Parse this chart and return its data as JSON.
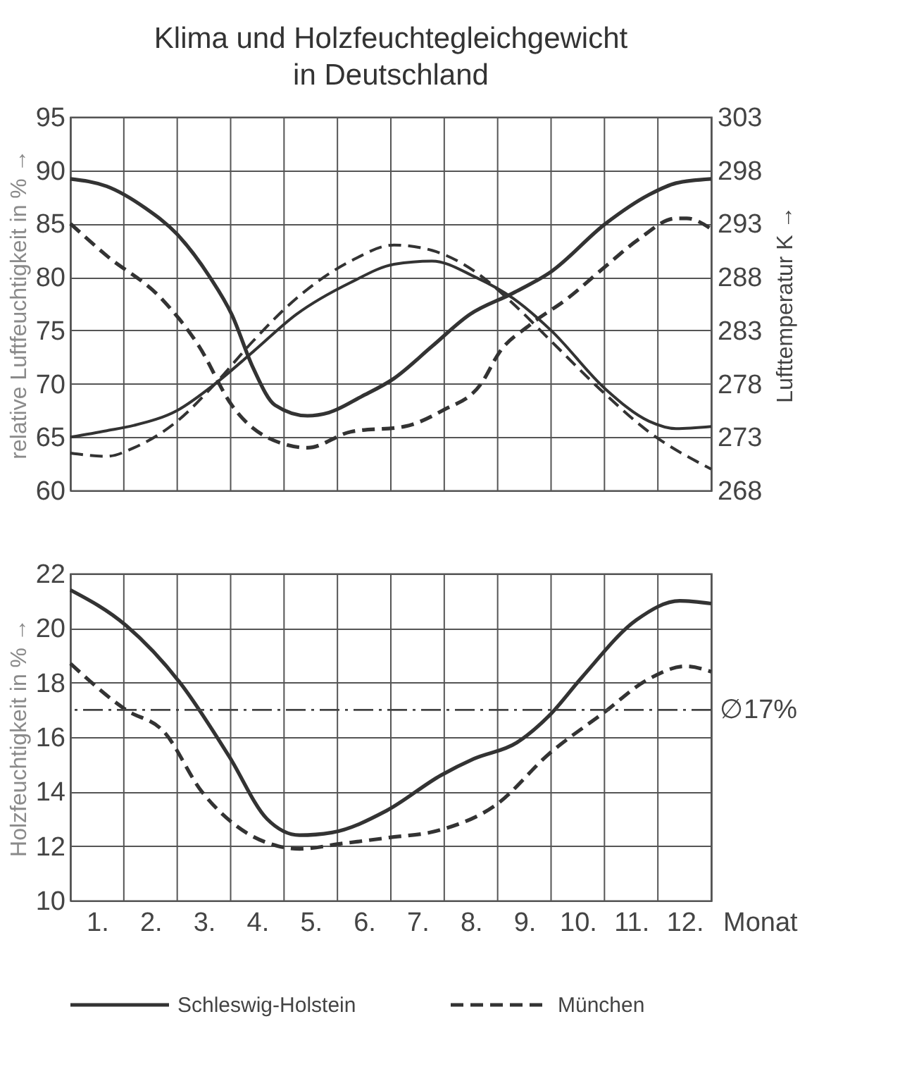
{
  "chart_data": [
    {
      "type": "line",
      "title": "Klima und Holzfeuchtegleichgewicht\nin Deutschland",
      "ylabel": "relative Luftfeuchtigkeit in % →",
      "y2label": "Lufttemperatur K →",
      "xlim": [
        0.5,
        12.5
      ],
      "xticks": [
        {
          "value": 0.5,
          "label": null
        },
        {
          "value": 1.5,
          "label": null
        },
        {
          "value": 2.5,
          "label": null
        },
        {
          "value": 3.5,
          "label": null
        },
        {
          "value": 4.5,
          "label": null
        },
        {
          "value": 5.5,
          "label": null
        },
        {
          "value": 6.5,
          "label": null
        },
        {
          "value": 7.5,
          "label": null
        },
        {
          "value": 8.5,
          "label": null
        },
        {
          "value": 9.5,
          "label": null
        },
        {
          "value": 10.5,
          "label": null
        },
        {
          "value": 11.5,
          "label": null
        },
        {
          "value": 12.5,
          "label": null
        }
      ],
      "ylim": [
        60,
        95
      ],
      "yticks": [
        60,
        65,
        70,
        75,
        80,
        85,
        90,
        95
      ],
      "y2lim": [
        268,
        303
      ],
      "y2ticks": [
        268,
        273,
        278,
        283,
        288,
        293,
        298,
        303
      ],
      "grid": true,
      "tick_labels": "y",
      "legend": "bottom",
      "series": [
        {
          "name": "Schleswig-Holstein",
          "color": "#333333",
          "line_style": "solid",
          "x": [
            0.5,
            1.18,
            1.89,
            2.5,
            3.11,
            3.52,
            3.92,
            4.33,
            4.94,
            5.34,
            5.95,
            6.56,
            7.27,
            7.98,
            8.79,
            9.5,
            10.52,
            11.33,
            11.84,
            12.5
          ],
          "values": [
            89.2,
            88.5,
            86.5,
            84,
            80,
            76.5,
            71.5,
            68,
            67,
            67.3,
            68.8,
            70.5,
            73.5,
            76.5,
            78.5,
            80.5,
            85,
            87.7,
            88.8,
            89.2
          ]
        },
        {
          "color": "#333333",
          "line_style": "solid",
          "axis": "y2",
          "x": [
            0.5,
            1.18,
            1.69,
            2.5,
            3.21,
            3.92,
            4.73,
            5.75,
            6.56,
            7.27,
            8.08,
            8.79,
            9.5,
            10.52,
            11.33,
            11.84,
            12.5
          ],
          "values": [
            273,
            273.6,
            274.1,
            275.5,
            278,
            281,
            284.5,
            287.5,
            289.2,
            289.5,
            288,
            286,
            283,
            277.5,
            274.5,
            273.8,
            274
          ]
        },
        {
          "name": "München",
          "color": "#333333",
          "line_style": "dashed",
          "x": [
            0.5,
            1.18,
            2.2,
            2.91,
            3.52,
            4.53,
            4.94,
            5.75,
            6.76,
            7.47,
            8.19,
            8.54,
            9.1,
            9.81,
            10.52,
            11.13,
            11.84,
            12.04,
            12.5
          ],
          "values": [
            85,
            82,
            78,
            73.5,
            68,
            64.3,
            64,
            65.5,
            66,
            67.5,
            70,
            73,
            75.5,
            78,
            81,
            83.5,
            85.5,
            85.5,
            84.5
          ]
        },
        {
          "color": "#333333",
          "line_style": "dashed",
          "axis": "y2",
          "x": [
            0.5,
            1.18,
            1.69,
            2.5,
            3.21,
            3.92,
            4.73,
            5.75,
            6.56,
            7.27,
            8.08,
            8.79,
            9.5,
            10.52,
            11.33,
            12.5
          ],
          "values": [
            271.5,
            271.2,
            272,
            274.5,
            278,
            282,
            286,
            289.5,
            291,
            290.5,
            288.5,
            285.5,
            282,
            277,
            273.5,
            270
          ]
        }
      ]
    },
    {
      "type": "line",
      "ylabel": "Holzfeuchtigkeit in % →",
      "xlabel": "Monat",
      "xlim": [
        0.5,
        12.5
      ],
      "xticks": [
        {
          "value": 0.5,
          "label": null
        },
        {
          "value": 1,
          "label": "1."
        },
        {
          "value": 1.5,
          "label": null
        },
        {
          "value": 2,
          "label": "2."
        },
        {
          "value": 2.5,
          "label": null
        },
        {
          "value": 3,
          "label": "3."
        },
        {
          "value": 3.5,
          "label": null
        },
        {
          "value": 4,
          "label": "4."
        },
        {
          "value": 4.5,
          "label": null
        },
        {
          "value": 5,
          "label": "5."
        },
        {
          "value": 5.5,
          "label": null
        },
        {
          "value": 6,
          "label": "6."
        },
        {
          "value": 6.5,
          "label": null
        },
        {
          "value": 7,
          "label": "7."
        },
        {
          "value": 7.5,
          "label": null
        },
        {
          "value": 8,
          "label": "8."
        },
        {
          "value": 8.5,
          "label": null
        },
        {
          "value": 9,
          "label": "9."
        },
        {
          "value": 9.5,
          "label": null
        },
        {
          "value": 10,
          "label": "10."
        },
        {
          "value": 10.5,
          "label": null
        },
        {
          "value": 11,
          "label": "11."
        },
        {
          "value": 11.5,
          "label": null
        },
        {
          "value": 12,
          "label": "12."
        },
        {
          "value": 12.5,
          "label": null
        }
      ],
      "ylim": [
        10,
        22
      ],
      "yticks": [
        10,
        12,
        14,
        16,
        18,
        20,
        22
      ],
      "grid": true,
      "ref_lines": [
        {
          "axis": "y",
          "value": 17,
          "label": "∅17%",
          "line_style": "dashdot"
        }
      ],
      "series": [
        {
          "color": "#333333",
          "line_style": "solid",
          "x": [
            0.5,
            1.54,
            2.55,
            3.47,
            4.18,
            4.79,
            5.4,
            6.42,
            7.44,
            8.05,
            8.86,
            9.47,
            10.08,
            11.1,
            11.91,
            12.5
          ],
          "values": [
            21.4,
            20.1,
            18,
            15.3,
            13,
            12.4,
            12.5,
            13.3,
            14.6,
            15.2,
            15.8,
            16.8,
            18.2,
            20.3,
            21,
            20.9
          ]
        },
        {
          "color": "#333333",
          "line_style": "dashed",
          "x": [
            0.5,
            1.54,
            2.25,
            2.96,
            3.57,
            4.39,
            4.79,
            5.61,
            6.42,
            7.44,
            8.46,
            9.47,
            10.49,
            11.3,
            12.02,
            12.5
          ],
          "values": [
            18.7,
            17,
            16.2,
            14,
            12.8,
            12,
            11.9,
            12.1,
            12.3,
            12.6,
            13.5,
            15.4,
            16.9,
            18.1,
            18.6,
            18.4
          ]
        }
      ]
    }
  ]
}
